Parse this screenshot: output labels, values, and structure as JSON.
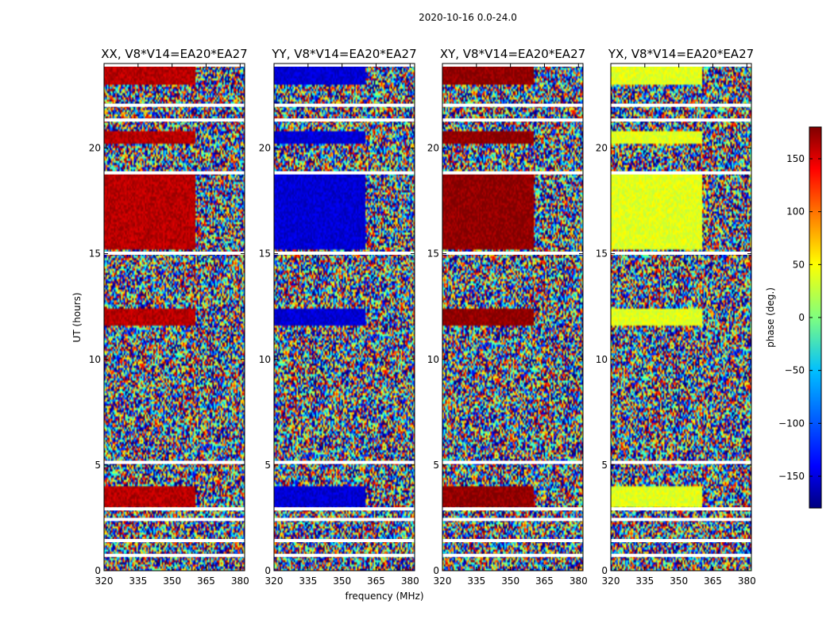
{
  "figure": {
    "title": "2020-10-16 0.0-24.0"
  },
  "chart_data": {
    "type": "heatmap",
    "title": "2020-10-16 0.0-24.0",
    "xlabel": "frequency (MHz)",
    "ylabel": "UT (hours)",
    "xlim": [
      320,
      382
    ],
    "ylim": [
      0,
      24
    ],
    "xticks": [
      320,
      335,
      350,
      365,
      380
    ],
    "yticks": [
      0,
      5,
      10,
      15,
      20
    ],
    "colorbar": {
      "label": "phase (deg.)",
      "range": [
        -180,
        180
      ],
      "ticks": [
        150,
        100,
        50,
        0,
        -50,
        -100,
        -150
      ],
      "tick_labels": [
        "150",
        "100",
        "50",
        "0",
        "−50",
        "−100",
        "−150"
      ],
      "colormap": [
        "#00007f",
        "#0000ff",
        "#007fff",
        "#00ffff",
        "#7fff7f",
        "#ffff00",
        "#ff7f00",
        "#ff0000",
        "#7f0000"
      ]
    },
    "coherent_band": {
      "freq_range": [
        320,
        360
      ],
      "time_ranges": [
        [
          15.2,
          18.8
        ],
        [
          20.2,
          20.8
        ],
        [
          11.6,
          12.4
        ],
        [
          3.0,
          4.0
        ],
        [
          23.0,
          24.0
        ]
      ]
    },
    "flagged_times": [
      24.0,
      22.1,
      21.4,
      18.9,
      15.1,
      5.2,
      3.0,
      2.5,
      1.5,
      0.8
    ],
    "panels": [
      {
        "title": "XX, V8*V14=EA20*EA27",
        "coherent_phase_deg": 160
      },
      {
        "title": "YY, V8*V14=EA20*EA27",
        "coherent_phase_deg": -150
      },
      {
        "title": "XY, V8*V14=EA20*EA27",
        "coherent_phase_deg": 175
      },
      {
        "title": "YX, V8*V14=EA20*EA27",
        "coherent_phase_deg": 35
      }
    ]
  }
}
